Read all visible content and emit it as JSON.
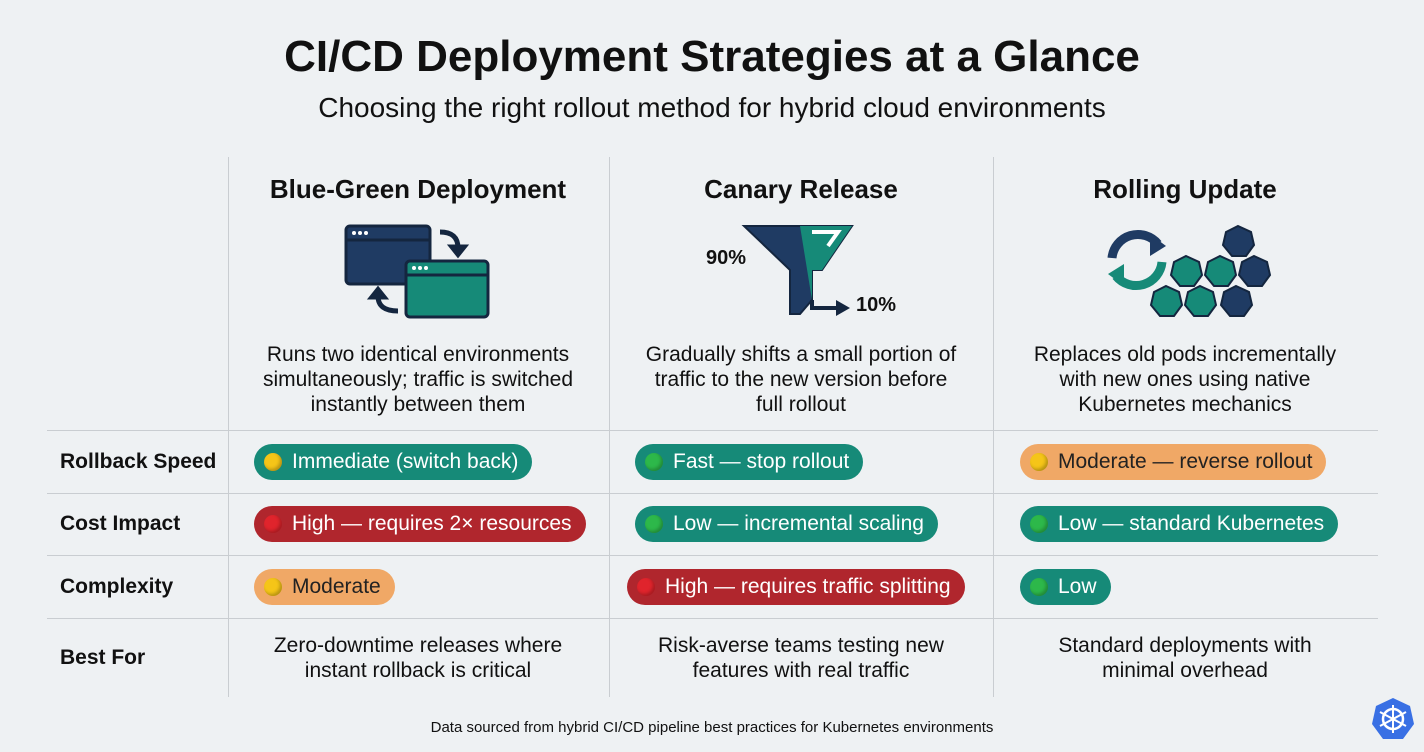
{
  "header": {
    "title": "CI/CD Deployment Strategies at a Glance",
    "subtitle": "Choosing the right rollout method for hybrid cloud environments"
  },
  "columns": [
    {
      "title": "Blue-Green Deployment",
      "description": [
        "Runs two identical environments",
        "simultaneously; traffic is switched",
        "instantly between them"
      ]
    },
    {
      "title": "Canary Release",
      "icon_labels": [
        "90%",
        "10%"
      ],
      "description": [
        "Gradually shifts a small portion of",
        "traffic to the new version before",
        "full rollout"
      ]
    },
    {
      "title": "Rolling Update",
      "description": [
        "Replaces old pods incrementally",
        "with new ones using native",
        "Kubernetes mechanics"
      ]
    }
  ],
  "rows": [
    {
      "label": "Rollback Speed",
      "cells": [
        {
          "text": "Immediate (switch back)",
          "color": "#168a78",
          "dot": "#f5c518"
        },
        {
          "text": "Fast — stop rollout",
          "color": "#168a78",
          "dot": "#2db84a"
        },
        {
          "text": "Moderate — reverse rollout",
          "color": "#f0a866",
          "dot": "#f5c518"
        }
      ]
    },
    {
      "label": "Cost Impact",
      "cells": [
        {
          "text": "High — requires 2× resources",
          "color": "#b0262d",
          "dot": "#e0242c"
        },
        {
          "text": "Low — incremental scaling",
          "color": "#168a78",
          "dot": "#2db84a"
        },
        {
          "text": "Low — standard Kubernetes",
          "color": "#168a78",
          "dot": "#2db84a"
        }
      ]
    },
    {
      "label": "Complexity",
      "cells": [
        {
          "text": "Moderate",
          "color": "#f0a866",
          "dot": "#f5c518"
        },
        {
          "text": "High — requires traffic splitting",
          "color": "#b0262d",
          "dot": "#e0242c"
        },
        {
          "text": "Low",
          "color": "#168a78",
          "dot": "#2db84a"
        }
      ]
    },
    {
      "label": "Best For",
      "cells": [
        {
          "text": [
            "Zero-downtime releases where",
            "instant rollback is critical"
          ]
        },
        {
          "text": [
            "Risk-averse teams testing new",
            "features with real traffic"
          ]
        },
        {
          "text": [
            "Standard deployments with",
            "minimal overhead"
          ]
        }
      ]
    }
  ],
  "footer": "Data sourced from hybrid CI/CD pipeline best practices for Kubernetes environments"
}
